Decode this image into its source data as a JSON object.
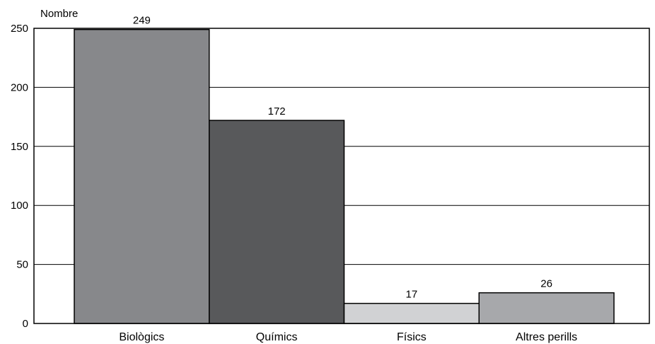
{
  "chart_data": {
    "type": "bar",
    "ylabel": "Nombre",
    "ylim": [
      0,
      250
    ],
    "yticks": [
      0,
      50,
      100,
      150,
      200,
      250
    ],
    "grid": true,
    "categories": [
      "Biològics",
      "Químics",
      "Físics",
      "Altres perills"
    ],
    "values": [
      249,
      172,
      17,
      26
    ],
    "data_labels": [
      "249",
      "172",
      "17",
      "26"
    ],
    "colors": [
      "#87888b",
      "#58595b",
      "#d1d2d4",
      "#a7a8ab"
    ]
  }
}
